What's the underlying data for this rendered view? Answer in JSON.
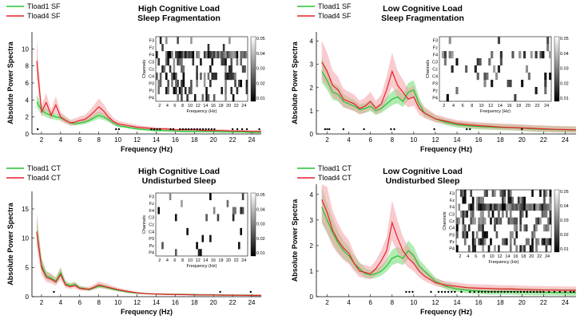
{
  "colors": {
    "tload1": "#22c32e",
    "tload4": "#e8202a",
    "tload1_band": "#7be07f",
    "tload4_band": "#f4a1a6",
    "overlap_band": "#c9a878"
  },
  "chart_data": [
    {
      "type": "line",
      "title": [
        "High Cognitive Load",
        "Sleep Fragmentation"
      ],
      "xlabel": "Frequency (Hz)",
      "ylabel": "Absolute Power Spectra",
      "xlim": [
        1,
        25
      ],
      "ylim": [
        0,
        12
      ],
      "xticks": [
        "2",
        "4",
        "6",
        "8",
        "10",
        "12",
        "14",
        "16",
        "18",
        "20",
        "22",
        "24"
      ],
      "yticks": [
        "0",
        "2",
        "4",
        "6",
        "8",
        "10"
      ],
      "series": [
        {
          "name": "Tload1 SF",
          "color": "#22c32e",
          "x": [
            1.5,
            2,
            2.5,
            3,
            3.5,
            4,
            4.5,
            5,
            5.5,
            6,
            6.5,
            7,
            7.5,
            8,
            8.5,
            9,
            9.5,
            10,
            11,
            12,
            13,
            14,
            15,
            16,
            17,
            18,
            19,
            20,
            21,
            22,
            23,
            24,
            25
          ],
          "y": [
            3.8,
            2.8,
            2.4,
            2.2,
            2.0,
            1.9,
            1.6,
            1.3,
            1.2,
            1.3,
            1.4,
            1.6,
            1.9,
            2.2,
            2.0,
            1.7,
            1.3,
            1.0,
            0.8,
            0.6,
            0.5,
            0.4,
            0.4,
            0.35,
            0.3,
            0.3,
            0.3,
            0.3,
            0.25,
            0.25,
            0.25,
            0.2,
            0.2
          ]
        },
        {
          "name": "Tload4 SF",
          "color": "#e8202a",
          "x": [
            1.5,
            2,
            2.5,
            3,
            3.5,
            4,
            4.5,
            5,
            5.5,
            6,
            6.5,
            7,
            7.5,
            8,
            8.5,
            9,
            9.5,
            10,
            11,
            12,
            13,
            14,
            15,
            16,
            17,
            18,
            19,
            20,
            21,
            22,
            23,
            24,
            25
          ],
          "y": [
            8.6,
            2.6,
            3.7,
            2.2,
            3.4,
            2.0,
            1.6,
            1.3,
            1.4,
            1.6,
            1.7,
            2.1,
            2.6,
            3.2,
            2.7,
            2.0,
            1.5,
            1.2,
            1.0,
            0.8,
            0.7,
            0.6,
            0.6,
            0.5,
            0.5,
            0.5,
            0.4,
            0.4,
            0.4,
            0.35,
            0.35,
            0.3,
            0.3
          ]
        }
      ],
      "significance_x": [
        1.6,
        9.8,
        10.1,
        13.5,
        13.8,
        14.1,
        14.4,
        15.5,
        15.8,
        16.5,
        16.8,
        17.1,
        17.4,
        17.7,
        18.0,
        18.3,
        18.6,
        18.9,
        19.2,
        19.5,
        19.8,
        20.1,
        22.0,
        22.5,
        23.0,
        23.5,
        24.8
      ],
      "inset": {
        "xlabel": "Frequency (Hz)",
        "ylabel": "Channels",
        "channels": [
          "F3",
          "Fz",
          "F4",
          "C3",
          "Cz",
          "C4",
          "P3",
          "Pz",
          "P4"
        ],
        "xticks": [
          "2",
          "4",
          "6",
          "8",
          "10",
          "12",
          "14",
          "16",
          "18",
          "20",
          "22",
          "24"
        ],
        "colorbar_ticks": [
          "0.05",
          "0.04",
          "0.03",
          "0.02",
          "0.01"
        ],
        "density": [
          0.12,
          0.06,
          0.55,
          0.25,
          0.3,
          0.35,
          0.3,
          0.3,
          0.15
        ],
        "hot_from": 13.5,
        "hot_channel": 2
      }
    },
    {
      "type": "line",
      "title": [
        "Low Cognitive Load",
        "Sleep Fragmentation"
      ],
      "xlabel": "Frequency (Hz)",
      "ylabel": "Absolute Power Spectra",
      "xlim": [
        1,
        25
      ],
      "ylim": [
        0,
        4.4
      ],
      "xticks": [
        "2",
        "4",
        "6",
        "8",
        "10",
        "12",
        "14",
        "16",
        "18",
        "20",
        "22",
        "24"
      ],
      "yticks": [
        "0",
        "1",
        "2",
        "3",
        "4"
      ],
      "series": [
        {
          "name": "Tload1 SF",
          "color": "#22c32e",
          "x": [
            1.5,
            2,
            2.5,
            3,
            3.5,
            4,
            4.5,
            5,
            5.5,
            6,
            6.5,
            7,
            7.5,
            8,
            8.5,
            9,
            9.5,
            10,
            10.5,
            11,
            12,
            13,
            14,
            15,
            16,
            17,
            18,
            19,
            20,
            21,
            22,
            23,
            24,
            25
          ],
          "y": [
            2.7,
            2.3,
            1.8,
            1.7,
            1.4,
            1.3,
            1.2,
            1.05,
            1.1,
            1.2,
            1.0,
            1.1,
            1.3,
            1.5,
            1.6,
            1.4,
            1.8,
            1.9,
            1.3,
            0.9,
            0.65,
            0.5,
            0.4,
            0.35,
            0.32,
            0.3,
            0.28,
            0.27,
            0.25,
            0.22,
            0.2,
            0.19,
            0.18,
            0.17
          ]
        },
        {
          "name": "Tload4 SF",
          "color": "#e8202a",
          "x": [
            1.5,
            2,
            2.5,
            3,
            3.5,
            4,
            4.5,
            5,
            5.5,
            6,
            6.5,
            7,
            7.5,
            8,
            8.5,
            9,
            9.5,
            10,
            10.5,
            11,
            12,
            13,
            14,
            15,
            16,
            17,
            18,
            19,
            20,
            21,
            22,
            23,
            24,
            25
          ],
          "y": [
            3.1,
            2.7,
            2.1,
            1.9,
            1.5,
            1.4,
            1.3,
            1.1,
            1.2,
            1.4,
            1.1,
            1.3,
            1.9,
            2.7,
            2.1,
            1.8,
            1.5,
            1.6,
            1.1,
            0.9,
            0.65,
            0.55,
            0.45,
            0.4,
            0.36,
            0.33,
            0.3,
            0.28,
            0.26,
            0.24,
            0.22,
            0.2,
            0.19,
            0.18
          ]
        }
      ],
      "significance_x": [
        1.8,
        2.0,
        2.2,
        3.5,
        5.4,
        7.9,
        8.2,
        11.9,
        14.9,
        15.2,
        20.0
      ],
      "inset": {
        "xlabel": "Frequency (Hz)",
        "ylabel": "Channels",
        "channels": [
          "F3",
          "Fz",
          "F4",
          "C3",
          "Cz",
          "C4",
          "P3",
          "Pz",
          "P4"
        ],
        "xticks": [
          "2",
          "4",
          "6",
          "8",
          "10",
          "12",
          "14",
          "16",
          "18",
          "20",
          "22",
          "24"
        ],
        "colorbar_ticks": [
          "0.05",
          "0.04",
          "0.03",
          "0.02",
          "0.01"
        ],
        "density": [
          0.1,
          0.05,
          0.35,
          0.1,
          0.12,
          0.18,
          0.2,
          0.12,
          0.1
        ],
        "hot_from": 30,
        "hot_channel": 2
      }
    },
    {
      "type": "line",
      "title": [
        "High Cognitive Load",
        "Undisturbed Sleep"
      ],
      "xlabel": "Frequency (Hz)",
      "ylabel": "Absolute Power Spectra",
      "xlim": [
        1,
        25
      ],
      "ylim": [
        0,
        18
      ],
      "xticks": [
        "2",
        "4",
        "6",
        "8",
        "10",
        "12",
        "14",
        "16",
        "18",
        "20",
        "22",
        "24"
      ],
      "yticks": [
        "0",
        "5",
        "10",
        "15"
      ],
      "series": [
        {
          "name": "Tload1 CT",
          "color": "#22c32e",
          "x": [
            1.5,
            2,
            2.5,
            3,
            3.5,
            4,
            4.5,
            5,
            5.5,
            6,
            6.5,
            7,
            7.5,
            8,
            8.5,
            9,
            9.5,
            10,
            11,
            12,
            13,
            14,
            15,
            16,
            17,
            18,
            19,
            20,
            21,
            22,
            23,
            24,
            25
          ],
          "y": [
            11.2,
            5.4,
            3.6,
            3.2,
            2.7,
            4.1,
            2.2,
            1.9,
            2.1,
            1.5,
            1.4,
            1.2,
            1.5,
            1.8,
            1.7,
            1.5,
            1.3,
            1.1,
            0.8,
            0.6,
            0.5,
            0.45,
            0.4,
            0.4,
            0.35,
            0.35,
            0.3,
            0.3,
            0.3,
            0.25,
            0.25,
            0.25,
            0.2
          ]
        },
        {
          "name": "Tload4 CT",
          "color": "#e8202a",
          "x": [
            1.5,
            2,
            2.5,
            3,
            3.5,
            4,
            4.5,
            5,
            5.5,
            6,
            6.5,
            7,
            7.5,
            8,
            8.5,
            9,
            9.5,
            10,
            11,
            12,
            13,
            14,
            15,
            16,
            17,
            18,
            19,
            20,
            21,
            22,
            23,
            24,
            25
          ],
          "y": [
            11.0,
            5.0,
            3.3,
            3.0,
            2.5,
            3.8,
            2.0,
            1.7,
            1.9,
            1.4,
            1.3,
            1.3,
            1.6,
            2.0,
            1.8,
            1.6,
            1.4,
            1.2,
            0.9,
            0.65,
            0.5,
            0.45,
            0.4,
            0.35,
            0.35,
            0.3,
            0.3,
            0.3,
            0.25,
            0.25,
            0.25,
            0.2,
            0.2
          ]
        }
      ],
      "significance_x": [
        3.3,
        20.7,
        23.9
      ],
      "inset": {
        "xlabel": "Frequency (Hz)",
        "ylabel": "Channels",
        "channels": [
          "F3",
          "Fz",
          "F4",
          "C3",
          "Cz",
          "C4",
          "P3",
          "Pz",
          "P4"
        ],
        "xticks": [
          "2",
          "4",
          "6",
          "8",
          "10",
          "12",
          "14",
          "16",
          "18",
          "20",
          "22",
          "24"
        ],
        "colorbar_ticks": [
          "0.05",
          "0.04",
          "0.03",
          "0.02",
          "0.01"
        ],
        "density": [
          0.04,
          0.03,
          0.08,
          0.1,
          0.05,
          0.06,
          0.06,
          0.04,
          0.04
        ],
        "hot_from": 30,
        "hot_channel": 2
      }
    },
    {
      "type": "line",
      "title": [
        "Low Cognitive Load",
        "Undisturbed Sleep"
      ],
      "xlabel": "Frequency (Hz)",
      "ylabel": "Absolute Power Spectra",
      "xlim": [
        1,
        25
      ],
      "ylim": [
        0,
        4.4
      ],
      "xticks": [
        "2",
        "4",
        "6",
        "8",
        "10",
        "12",
        "14",
        "16",
        "18",
        "20",
        "22",
        "24"
      ],
      "yticks": [
        "0",
        "1",
        "2",
        "3",
        "4"
      ],
      "series": [
        {
          "name": "Tload1 CT",
          "color": "#22c32e",
          "x": [
            1.5,
            2,
            2.5,
            3,
            3.5,
            4,
            4.5,
            5,
            5.5,
            6,
            6.5,
            7,
            7.5,
            8,
            8.5,
            9,
            9.5,
            10,
            10.5,
            11,
            12,
            13,
            14,
            15,
            16,
            17,
            18,
            19,
            20,
            21,
            22,
            23,
            24,
            25
          ],
          "y": [
            3.5,
            3.0,
            2.5,
            2.1,
            1.8,
            1.6,
            1.3,
            1.1,
            0.9,
            0.85,
            0.9,
            1.0,
            1.2,
            1.5,
            1.6,
            1.5,
            1.8,
            1.6,
            1.2,
            1.0,
            0.6,
            0.4,
            0.3,
            0.25,
            0.22,
            0.2,
            0.2,
            0.2,
            0.18,
            0.18,
            0.17,
            0.17,
            0.16,
            0.16
          ]
        },
        {
          "name": "Tload4 CT",
          "color": "#e8202a",
          "x": [
            1.5,
            2,
            2.5,
            3,
            3.5,
            4,
            4.5,
            5,
            5.5,
            6,
            6.5,
            7,
            7.5,
            8,
            8.5,
            9,
            9.5,
            10,
            10.5,
            11,
            12,
            13,
            14,
            15,
            16,
            17,
            18,
            19,
            20,
            21,
            22,
            23,
            24,
            25
          ],
          "y": [
            3.8,
            3.3,
            2.6,
            2.2,
            1.9,
            1.7,
            1.3,
            1.0,
            0.95,
            0.9,
            1.1,
            1.4,
            1.8,
            2.9,
            2.3,
            1.8,
            1.5,
            1.3,
            1.0,
            0.8,
            0.55,
            0.45,
            0.4,
            0.35,
            0.33,
            0.32,
            0.3,
            0.3,
            0.28,
            0.27,
            0.26,
            0.26,
            0.25,
            0.25
          ]
        }
      ],
      "significance_x": [
        9.3,
        9.6,
        9.9,
        11.6,
        12.3,
        12.6,
        12.9,
        13.2,
        13.5,
        13.8,
        14.4,
        15.2,
        15.6,
        16.0,
        16.3,
        16.6,
        16.9,
        17.2,
        17.5,
        17.8,
        18.1,
        18.4,
        18.7,
        19.0,
        19.3,
        19.6,
        19.9,
        20.2,
        20.5,
        20.8,
        21.1,
        21.4,
        21.7,
        22.0,
        22.5,
        23.0,
        23.5,
        24.0,
        24.5,
        24.8
      ],
      "inset": {
        "xlabel": "Frequency (Hz)",
        "ylabel": "Channels",
        "channels": [
          "F3",
          "Fz",
          "F4",
          "C3",
          "Cz",
          "C4",
          "P3",
          "Pz",
          "P4"
        ],
        "xticks": [
          "2",
          "4",
          "6",
          "8",
          "10",
          "12",
          "14",
          "16",
          "18",
          "20",
          "22",
          "24"
        ],
        "colorbar_ticks": [
          "0.05",
          "0.04",
          "0.03",
          "0.02",
          "0.01"
        ],
        "density": [
          0.4,
          0.35,
          0.55,
          0.45,
          0.5,
          0.45,
          0.35,
          0.35,
          0.3
        ],
        "hot_from": 6,
        "hot_channel": 2
      }
    }
  ]
}
